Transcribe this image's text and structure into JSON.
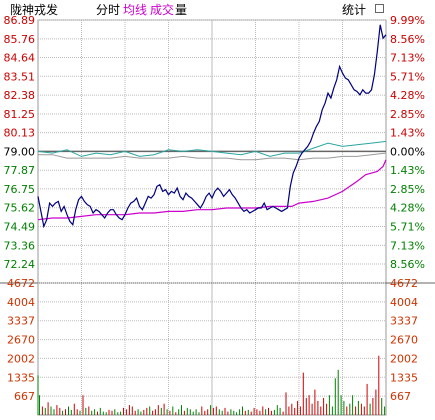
{
  "header": {
    "stock_name": "陇神戎发",
    "tab_minute": "分时",
    "tab_avg": "均线",
    "tab_volume_a": "成交",
    "tab_volume_b": "量",
    "stats_label": "统计"
  },
  "colors": {
    "up": "#cc0000",
    "down": "#008000",
    "neutral": "#000000",
    "price_line": "#000080",
    "avg_line": "#cc00cc",
    "volume_axis": "#cc3300",
    "index_teal": "#2aa6a0",
    "index_gray": "#999999"
  },
  "chart_data": {
    "type": "line",
    "prev_close": 79.0,
    "price_ticks_left": [
      "86.89",
      "85.76",
      "84.64",
      "83.51",
      "82.38",
      "81.25",
      "80.13",
      "79.00",
      "77.87",
      "76.75",
      "75.62",
      "74.49",
      "73.36",
      "72.24"
    ],
    "pct_ticks_right": [
      "9.99%",
      "8.56%",
      "7.13%",
      "5.71%",
      "4.28%",
      "2.85%",
      "1.43%",
      "0.00%",
      "1.43%",
      "2.85%",
      "4.28%",
      "5.71%",
      "7.13%",
      "8.56%"
    ],
    "volume_ticks_left": [
      "4672",
      "4004",
      "3337",
      "2670",
      "2002",
      "1335",
      "667"
    ],
    "volume_ticks_right": [
      "4672",
      "4004",
      "3337",
      "2670",
      "2002",
      "1335",
      "667"
    ],
    "price_range": [
      71.1,
      86.89
    ],
    "volume_max": 4672,
    "price_series": {
      "name": "price",
      "x": [
        0,
        2,
        4,
        6,
        8,
        10,
        12,
        14,
        16,
        18,
        20,
        22,
        24,
        26,
        28,
        30,
        32,
        34,
        36,
        38,
        40,
        42,
        44,
        46,
        48,
        50,
        52,
        54,
        56,
        58,
        60,
        62,
        64,
        66,
        68,
        70,
        72,
        74,
        76,
        78,
        80,
        82,
        84,
        86,
        88,
        90,
        92,
        94,
        96,
        98,
        100,
        102,
        104,
        106,
        108,
        110,
        112,
        114,
        116,
        118,
        120,
        122,
        124,
        126,
        128,
        130,
        132,
        134,
        136,
        138,
        140,
        142,
        144,
        146,
        148,
        150,
        152,
        154,
        156,
        158,
        160,
        162,
        164,
        166,
        168,
        170,
        172,
        174,
        176,
        178,
        180,
        182,
        184,
        186,
        188,
        190,
        192,
        194,
        196,
        198,
        200,
        202,
        204,
        206,
        208,
        210,
        212,
        214,
        216,
        218,
        220,
        222,
        224,
        226,
        228,
        230,
        232,
        234,
        236,
        238,
        240
      ],
      "values": [
        76.3,
        75.4,
        74.5,
        74.9,
        75.9,
        75.7,
        75.9,
        76.0,
        75.4,
        75.7,
        75.2,
        74.8,
        74.6,
        75.5,
        76.1,
        76.3,
        76.0,
        75.8,
        75.7,
        75.3,
        75.5,
        75.4,
        75.2,
        75.0,
        75.3,
        75.5,
        75.5,
        75.2,
        75.0,
        74.9,
        75.2,
        75.6,
        75.9,
        76.0,
        76.2,
        75.7,
        75.5,
        75.9,
        76.3,
        76.2,
        76.4,
        76.9,
        77.0,
        76.6,
        76.7,
        76.4,
        76.6,
        76.5,
        76.8,
        76.3,
        76.1,
        76.5,
        76.3,
        76.2,
        76.0,
        75.8,
        75.6,
        75.9,
        76.3,
        76.5,
        76.2,
        76.6,
        76.8,
        76.6,
        76.3,
        76.5,
        76.7,
        76.4,
        76.2,
        75.9,
        75.6,
        75.4,
        75.5,
        75.3,
        75.4,
        75.5,
        75.6,
        75.6,
        75.9,
        75.5,
        75.6,
        75.7,
        75.6,
        75.5,
        75.4,
        75.5,
        75.6,
        76.9,
        77.7,
        78.1,
        78.6,
        78.9,
        79.1,
        79.3,
        79.6,
        80.1,
        80.5,
        80.8,
        81.5,
        81.9,
        82.5,
        82.2,
        82.8,
        83.3,
        84.1,
        83.7,
        83.4,
        83.3,
        83.0,
        82.7,
        82.6,
        82.4,
        82.7,
        82.5,
        82.5,
        82.7,
        83.6,
        85.0,
        86.6,
        85.8,
        86.0
      ]
    },
    "avg_series": {
      "name": "avg",
      "x": [
        0,
        10,
        20,
        30,
        40,
        50,
        60,
        70,
        80,
        90,
        100,
        110,
        120,
        130,
        140,
        150,
        160,
        170,
        175,
        180,
        190,
        200,
        210,
        220,
        226,
        230,
        234,
        238,
        240
      ],
      "values": [
        74.9,
        75.0,
        75.0,
        75.1,
        75.2,
        75.2,
        75.2,
        75.3,
        75.3,
        75.4,
        75.4,
        75.5,
        75.5,
        75.6,
        75.6,
        75.6,
        75.7,
        75.7,
        75.7,
        75.9,
        76.0,
        76.2,
        76.6,
        77.2,
        77.6,
        77.7,
        77.8,
        78.1,
        78.5
      ]
    },
    "index_teal_series": {
      "name": "index_a",
      "x": [
        0,
        10,
        20,
        30,
        40,
        50,
        60,
        70,
        80,
        90,
        100,
        110,
        120,
        130,
        140,
        150,
        160,
        170,
        180,
        190,
        200,
        210,
        220,
        230,
        240
      ],
      "values": [
        79.0,
        78.9,
        79.1,
        78.7,
        78.9,
        78.8,
        79.0,
        78.7,
        78.8,
        79.1,
        79.0,
        79.1,
        79.0,
        78.9,
        78.8,
        79.0,
        78.7,
        78.9,
        78.9,
        79.2,
        79.5,
        79.3,
        79.4,
        79.5,
        79.6
      ]
    },
    "index_gray_series": {
      "name": "index_b",
      "x": [
        0,
        10,
        20,
        30,
        40,
        50,
        60,
        70,
        80,
        90,
        100,
        110,
        120,
        130,
        140,
        150,
        160,
        170,
        180,
        190,
        200,
        210,
        220,
        230,
        240
      ],
      "values": [
        78.8,
        78.8,
        78.6,
        78.6,
        78.6,
        78.6,
        78.7,
        78.6,
        78.6,
        78.6,
        78.7,
        78.6,
        78.6,
        78.6,
        78.5,
        78.5,
        78.6,
        78.6,
        78.5,
        78.6,
        78.6,
        78.7,
        78.7,
        78.8,
        78.9
      ]
    },
    "volume_bars": {
      "x": [
        0,
        1,
        3,
        5,
        7,
        9,
        11,
        13,
        15,
        17,
        19,
        21,
        23,
        25,
        27,
        29,
        31,
        33,
        35,
        37,
        39,
        41,
        43,
        45,
        47,
        49,
        51,
        53,
        55,
        57,
        59,
        61,
        63,
        65,
        67,
        69,
        71,
        73,
        75,
        77,
        79,
        81,
        83,
        85,
        87,
        89,
        91,
        93,
        95,
        97,
        99,
        101,
        103,
        105,
        107,
        109,
        111,
        113,
        115,
        117,
        119,
        121,
        123,
        125,
        127,
        129,
        131,
        133,
        135,
        137,
        139,
        141,
        143,
        145,
        147,
        149,
        151,
        153,
        155,
        157,
        159,
        161,
        163,
        165,
        167,
        169,
        171,
        173,
        175,
        177,
        179,
        181,
        183,
        185,
        187,
        189,
        191,
        193,
        195,
        197,
        199,
        201,
        203,
        205,
        207,
        209,
        211,
        213,
        215,
        217,
        219,
        221,
        223,
        225,
        227,
        229,
        231,
        233,
        235,
        237,
        239
      ],
      "values": [
        1400,
        700,
        300,
        250,
        450,
        300,
        200,
        350,
        250,
        150,
        200,
        300,
        180,
        400,
        200,
        150,
        700,
        250,
        300,
        150,
        200,
        120,
        250,
        120,
        100,
        180,
        150,
        200,
        100,
        120,
        250,
        200,
        350,
        300,
        150,
        200,
        120,
        180,
        250,
        300,
        150,
        200,
        350,
        250,
        400,
        200,
        150,
        300,
        100,
        200,
        350,
        150,
        250,
        200,
        120,
        200,
        100,
        300,
        150,
        200,
        350,
        250,
        300,
        200,
        150,
        250,
        120,
        200,
        150,
        100,
        200,
        300,
        150,
        180,
        120,
        250,
        200,
        150,
        300,
        200,
        250,
        150,
        180,
        350,
        250,
        120,
        800,
        300,
        400,
        250,
        500,
        300,
        1500,
        600,
        700,
        400,
        900,
        500,
        300,
        600,
        400,
        700,
        300,
        1300,
        1600,
        700,
        500,
        300,
        400,
        700,
        300,
        500,
        400,
        300,
        1100,
        400,
        600,
        900,
        2100,
        600,
        300
      ],
      "colors": [
        "down",
        "down",
        "up",
        "down",
        "up",
        "down",
        "down",
        "up",
        "up",
        "down",
        "up",
        "down",
        "down",
        "up",
        "up",
        "down",
        "up",
        "down",
        "up",
        "down",
        "down",
        "up",
        "down",
        "down",
        "down",
        "up",
        "up",
        "down",
        "down",
        "down",
        "up",
        "up",
        "up",
        "up",
        "up",
        "down",
        "down",
        "up",
        "up",
        "down",
        "up",
        "up",
        "up",
        "down",
        "up",
        "down",
        "up",
        "down",
        "up",
        "down",
        "down",
        "up",
        "down",
        "down",
        "down",
        "down",
        "down",
        "up",
        "up",
        "up",
        "down",
        "up",
        "up",
        "down",
        "down",
        "up",
        "up",
        "down",
        "down",
        "down",
        "down",
        "down",
        "up",
        "down",
        "up",
        "up",
        "up",
        "up",
        "up",
        "down",
        "up",
        "up",
        "down",
        "down",
        "down",
        "up",
        "up",
        "up",
        "up",
        "up",
        "up",
        "up",
        "up",
        "up",
        "up",
        "up",
        "up",
        "up",
        "up",
        "up",
        "up",
        "down",
        "down",
        "down",
        "down",
        "down",
        "down",
        "up",
        "down",
        "down",
        "up",
        "down",
        "up",
        "up",
        "up",
        "down",
        "up",
        "up",
        "up",
        "down",
        "down"
      ]
    }
  }
}
